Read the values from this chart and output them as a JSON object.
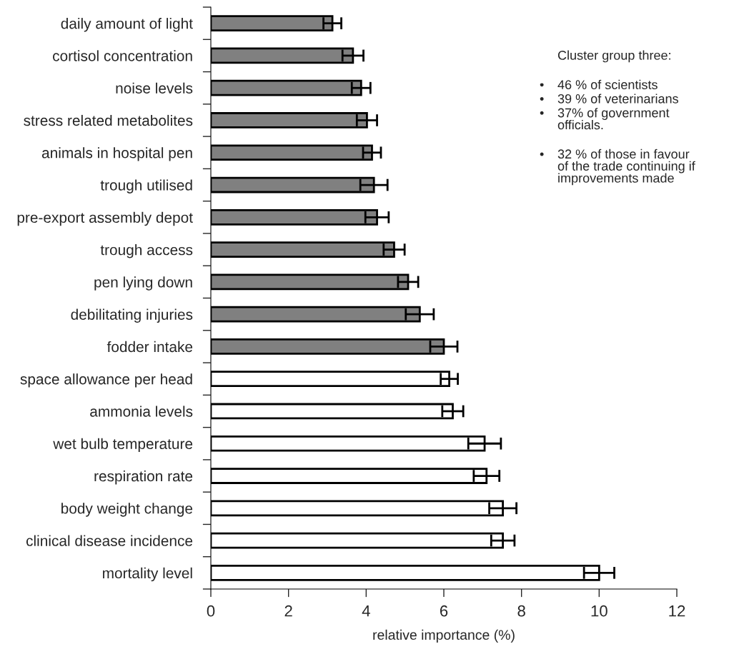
{
  "chart_data": {
    "type": "bar",
    "orientation": "horizontal",
    "categories": [
      "daily amount of light",
      "cortisol concentration",
      "noise levels",
      "stress related metabolites",
      "animals in hospital pen",
      "trough utilised",
      "pre-export assembly depot",
      "trough access",
      "pen lying down",
      "debilitating injuries",
      "fodder intake",
      "space allowance per head",
      "ammonia levels",
      "wet bulb temperature",
      "respiration rate",
      "body weight change",
      "clinical disease incidence",
      "mortality level"
    ],
    "values": [
      3.13,
      3.66,
      3.87,
      4.02,
      4.15,
      4.2,
      4.28,
      4.72,
      5.08,
      5.38,
      6.0,
      6.14,
      6.23,
      7.05,
      7.1,
      7.52,
      7.52,
      10.0
    ],
    "errors": [
      0.23,
      0.27,
      0.24,
      0.26,
      0.23,
      0.35,
      0.3,
      0.27,
      0.26,
      0.36,
      0.35,
      0.22,
      0.27,
      0.42,
      0.33,
      0.35,
      0.3,
      0.39
    ],
    "colors": [
      "#808080",
      "#808080",
      "#808080",
      "#808080",
      "#808080",
      "#808080",
      "#808080",
      "#808080",
      "#808080",
      "#808080",
      "#808080",
      "#ffffff",
      "#ffffff",
      "#ffffff",
      "#ffffff",
      "#ffffff",
      "#ffffff",
      "#ffffff"
    ],
    "xlabel": "relative importance (%)",
    "xlim": [
      0,
      12
    ],
    "xticks": [
      0,
      2,
      4,
      6,
      8,
      10,
      12
    ],
    "grid": false,
    "legend": false,
    "annotations": [
      "Cluster group three:",
      "•\t46 % of scientists",
      "•\t39 % of veterinarians",
      "•\t37% of government\nofficials.",
      "•\t32 % of those in favour\nof the trade continuing if\nimprovements made"
    ]
  }
}
